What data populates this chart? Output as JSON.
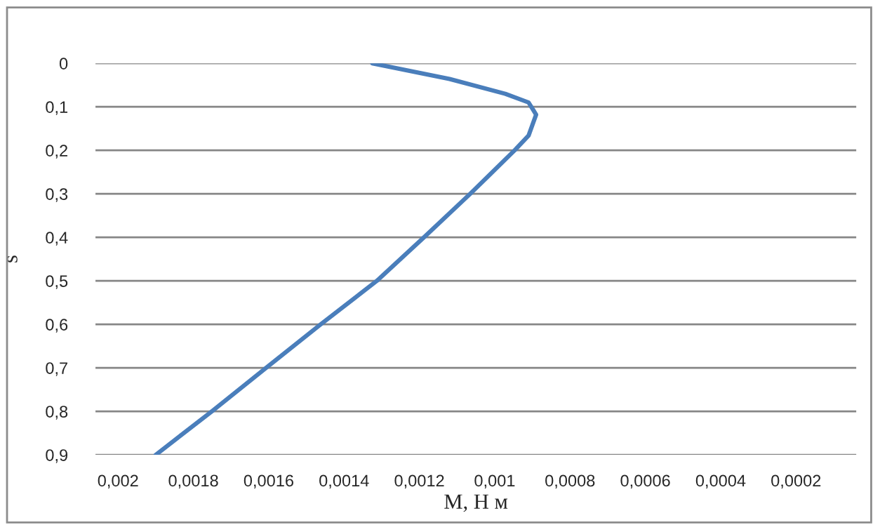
{
  "chart_data": {
    "type": "line",
    "xlabel": "M, Н м",
    "ylabel": "s",
    "series": [
      {
        "color": "#4a7ebb",
        "x": [
          0.001325,
          0.00112,
          0.000972,
          0.00091,
          0.00089,
          0.00091,
          0.000947,
          0.001065,
          0.001188,
          0.001313,
          0.001462,
          0.001607,
          0.001751,
          0.0019
        ],
        "values": [
          0,
          0.036,
          0.07,
          0.09,
          0.118,
          0.166,
          0.2,
          0.3,
          0.4,
          0.5,
          0.6,
          0.7,
          0.8,
          0.9
        ]
      }
    ],
    "xlim": [
      0.00206,
      4e-05
    ],
    "xticks": [
      {
        "value": 0.002,
        "label": "0,002"
      },
      {
        "value": 0.0018,
        "label": "0,0018"
      },
      {
        "value": 0.0016,
        "label": "0,0016"
      },
      {
        "value": 0.0014,
        "label": "0,0014"
      },
      {
        "value": 0.0012,
        "label": "0,0012"
      },
      {
        "value": 0.001,
        "label": "0,001"
      },
      {
        "value": 0.0008,
        "label": "0,0008"
      },
      {
        "value": 0.0006,
        "label": "0,0006"
      },
      {
        "value": 0.0004,
        "label": "0,0004"
      },
      {
        "value": 0.0002,
        "label": "0,0002"
      }
    ],
    "ylim": [
      0.9,
      0
    ],
    "yticks": [
      0,
      {
        "value": 0.1,
        "label": "0,1"
      },
      {
        "value": 0.2,
        "label": "0,2"
      },
      {
        "value": 0.3,
        "label": "0,3"
      },
      {
        "value": 0.4,
        "label": "0,4"
      },
      {
        "value": 0.5,
        "label": "0,5"
      },
      {
        "value": 0.6,
        "label": "0,6"
      },
      {
        "value": 0.7,
        "label": "0,7"
      },
      {
        "value": 0.8,
        "label": "0,8"
      },
      {
        "value": 0.9,
        "label": "0,9"
      }
    ],
    "grid": "y",
    "marker": "none",
    "line_style": "solid"
  }
}
